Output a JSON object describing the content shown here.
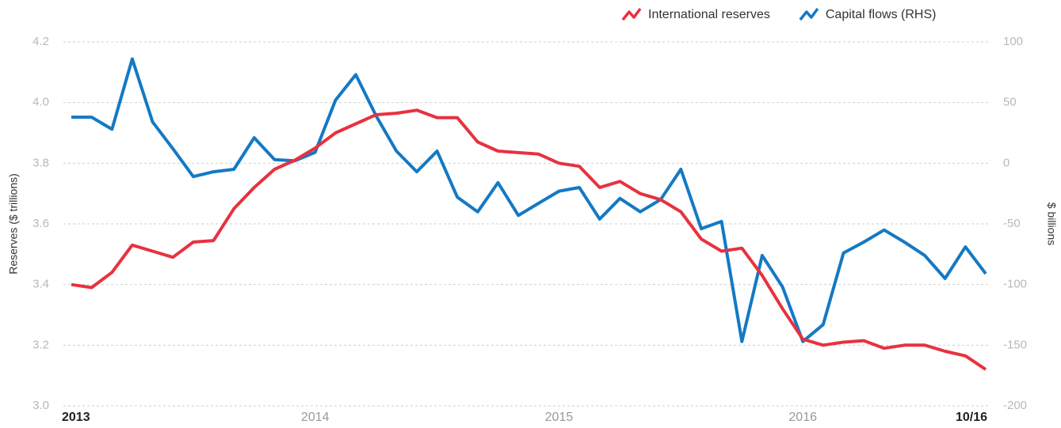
{
  "chart_data": {
    "type": "line",
    "axis_labels": {
      "y": "Reserves ($ trillions)",
      "y2": "$ billions"
    },
    "categories": [
      "2013",
      null,
      null,
      null,
      null,
      null,
      null,
      null,
      null,
      null,
      null,
      null,
      "2014",
      null,
      null,
      null,
      null,
      null,
      null,
      null,
      null,
      null,
      null,
      null,
      "2015",
      null,
      null,
      null,
      null,
      null,
      null,
      null,
      null,
      null,
      null,
      null,
      "2016",
      null,
      null,
      null,
      null,
      null,
      null,
      null,
      null,
      "10/16"
    ],
    "series": [
      {
        "name": "International reserves",
        "color": "#e8313f",
        "axis": "y",
        "values": [
          3.4,
          3.39,
          3.44,
          3.53,
          3.51,
          3.49,
          3.54,
          3.545,
          3.65,
          3.72,
          3.78,
          3.81,
          3.85,
          3.9,
          3.93,
          3.96,
          3.965,
          3.975,
          3.95,
          3.95,
          3.87,
          3.84,
          3.835,
          3.83,
          3.8,
          3.79,
          3.72,
          3.74,
          3.7,
          3.68,
          3.64,
          3.55,
          3.51,
          3.52,
          3.43,
          3.32,
          3.22,
          3.2,
          3.21,
          3.215,
          3.19,
          3.2,
          3.2,
          3.18,
          3.165,
          3.12
        ]
      },
      {
        "name": "Capital flows (RHS)",
        "color": "#1479c4",
        "axis": "y2",
        "values": [
          38,
          38,
          28,
          86,
          34,
          12,
          -11,
          -7,
          -5,
          21,
          3,
          2,
          9,
          52,
          73,
          39,
          10,
          -7,
          10,
          -28,
          -40,
          -16,
          -43,
          -33,
          -23,
          -20,
          -46,
          -29,
          -40,
          -30,
          -5,
          -54,
          -48,
          -147,
          -76,
          -102,
          -147,
          -133,
          -74,
          -65,
          -55,
          -65,
          -76,
          -95,
          -69,
          -91
        ]
      }
    ],
    "ylim": [
      3.0,
      4.2
    ],
    "yticks": [
      {
        "value": 3,
        "label": "3.0"
      },
      3.2,
      3.4,
      3.6,
      3.8,
      {
        "value": 4,
        "label": "4.0"
      },
      4.2
    ],
    "y2lim": [
      -200,
      100
    ],
    "y2ticks": [
      -200,
      -150,
      -100,
      -50,
      0,
      50,
      100
    ],
    "grid": true,
    "legend": "top-right"
  }
}
